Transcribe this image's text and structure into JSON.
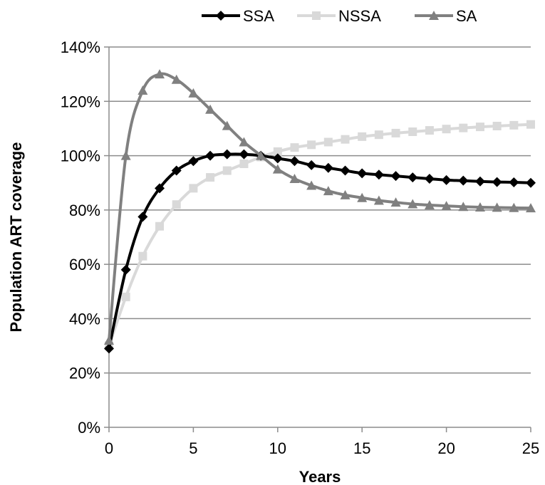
{
  "chart_data": {
    "type": "line",
    "xlabel": "Years",
    "ylabel": "Population ART coverage",
    "xlim": [
      0,
      25
    ],
    "ylim": [
      0,
      140
    ],
    "x_ticks": [
      0,
      5,
      10,
      15,
      20,
      25
    ],
    "y_ticks": [
      0,
      20,
      40,
      60,
      80,
      100,
      120,
      140
    ],
    "y_tick_labels": [
      "0%",
      "20%",
      "40%",
      "60%",
      "80%",
      "100%",
      "120%",
      "140%"
    ],
    "x_tick_labels": [
      "0",
      "5",
      "10",
      "15",
      "20",
      "25"
    ],
    "grid": "horizontal",
    "legend_position": "top",
    "x": [
      0,
      1,
      2,
      3,
      4,
      5,
      6,
      7,
      8,
      9,
      10,
      11,
      12,
      13,
      14,
      15,
      16,
      17,
      18,
      19,
      20,
      21,
      22,
      23,
      24,
      25
    ],
    "series": [
      {
        "name": "SSA",
        "color": "#000000",
        "marker": "diamond",
        "values": [
          29,
          58,
          77.5,
          88,
          94.5,
          98,
          100,
          100.5,
          100.5,
          100,
          99,
          98,
          96.5,
          95.5,
          94.5,
          93.5,
          93,
          92.5,
          92,
          91.5,
          91,
          90.8,
          90.5,
          90.3,
          90.2,
          90
        ]
      },
      {
        "name": "NSSA",
        "color": "#d9d9d9",
        "marker": "square",
        "values": [
          30,
          48,
          63,
          74,
          82,
          88,
          92,
          94.5,
          97,
          99.5,
          101.5,
          103,
          104,
          105,
          106,
          107,
          107.7,
          108.3,
          108.8,
          109.3,
          109.8,
          110.2,
          110.6,
          110.9,
          111.2,
          111.5
        ]
      },
      {
        "name": "SA",
        "color": "#808080",
        "marker": "triangle",
        "values": [
          32,
          100,
          124,
          130,
          128,
          123,
          117,
          111,
          105,
          100,
          95,
          91.5,
          89,
          87,
          85.5,
          84.5,
          83.5,
          82.8,
          82.2,
          81.8,
          81.5,
          81.2,
          81,
          80.9,
          80.8,
          80.7
        ]
      }
    ]
  }
}
